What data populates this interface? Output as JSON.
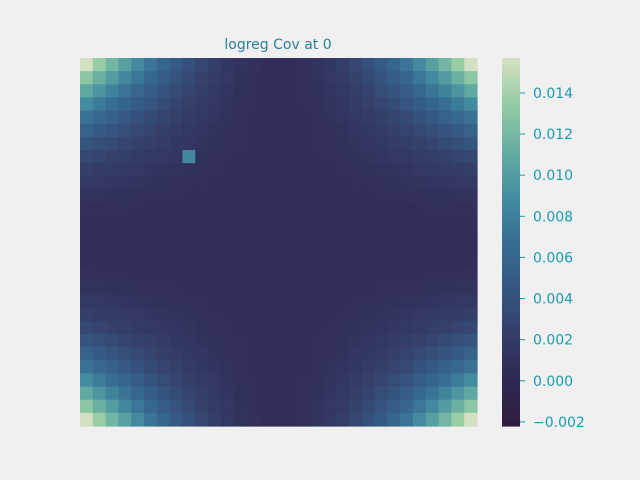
{
  "chart_data": {
    "type": "heatmap",
    "title": "logreg Cov at 0",
    "rows": 28,
    "cols": 31,
    "value_range": [
      -0.0022,
      0.0157
    ],
    "colormap": "mako_r",
    "colorbar": {
      "ticks": [
        -0.002,
        0.0,
        0.002,
        0.004,
        0.006,
        0.008,
        0.01,
        0.012,
        0.014
      ],
      "tick_labels": [
        "−0.002",
        "0.000",
        "0.002",
        "0.004",
        "0.006",
        "0.008",
        "0.010",
        "0.012",
        "0.014"
      ]
    },
    "values_note_peaks": {
      "corner_max": 0.0155,
      "center_min": 0.0005,
      "highlight_cell": {
        "row": 7,
        "col": 8,
        "value": 0.0085
      }
    }
  }
}
